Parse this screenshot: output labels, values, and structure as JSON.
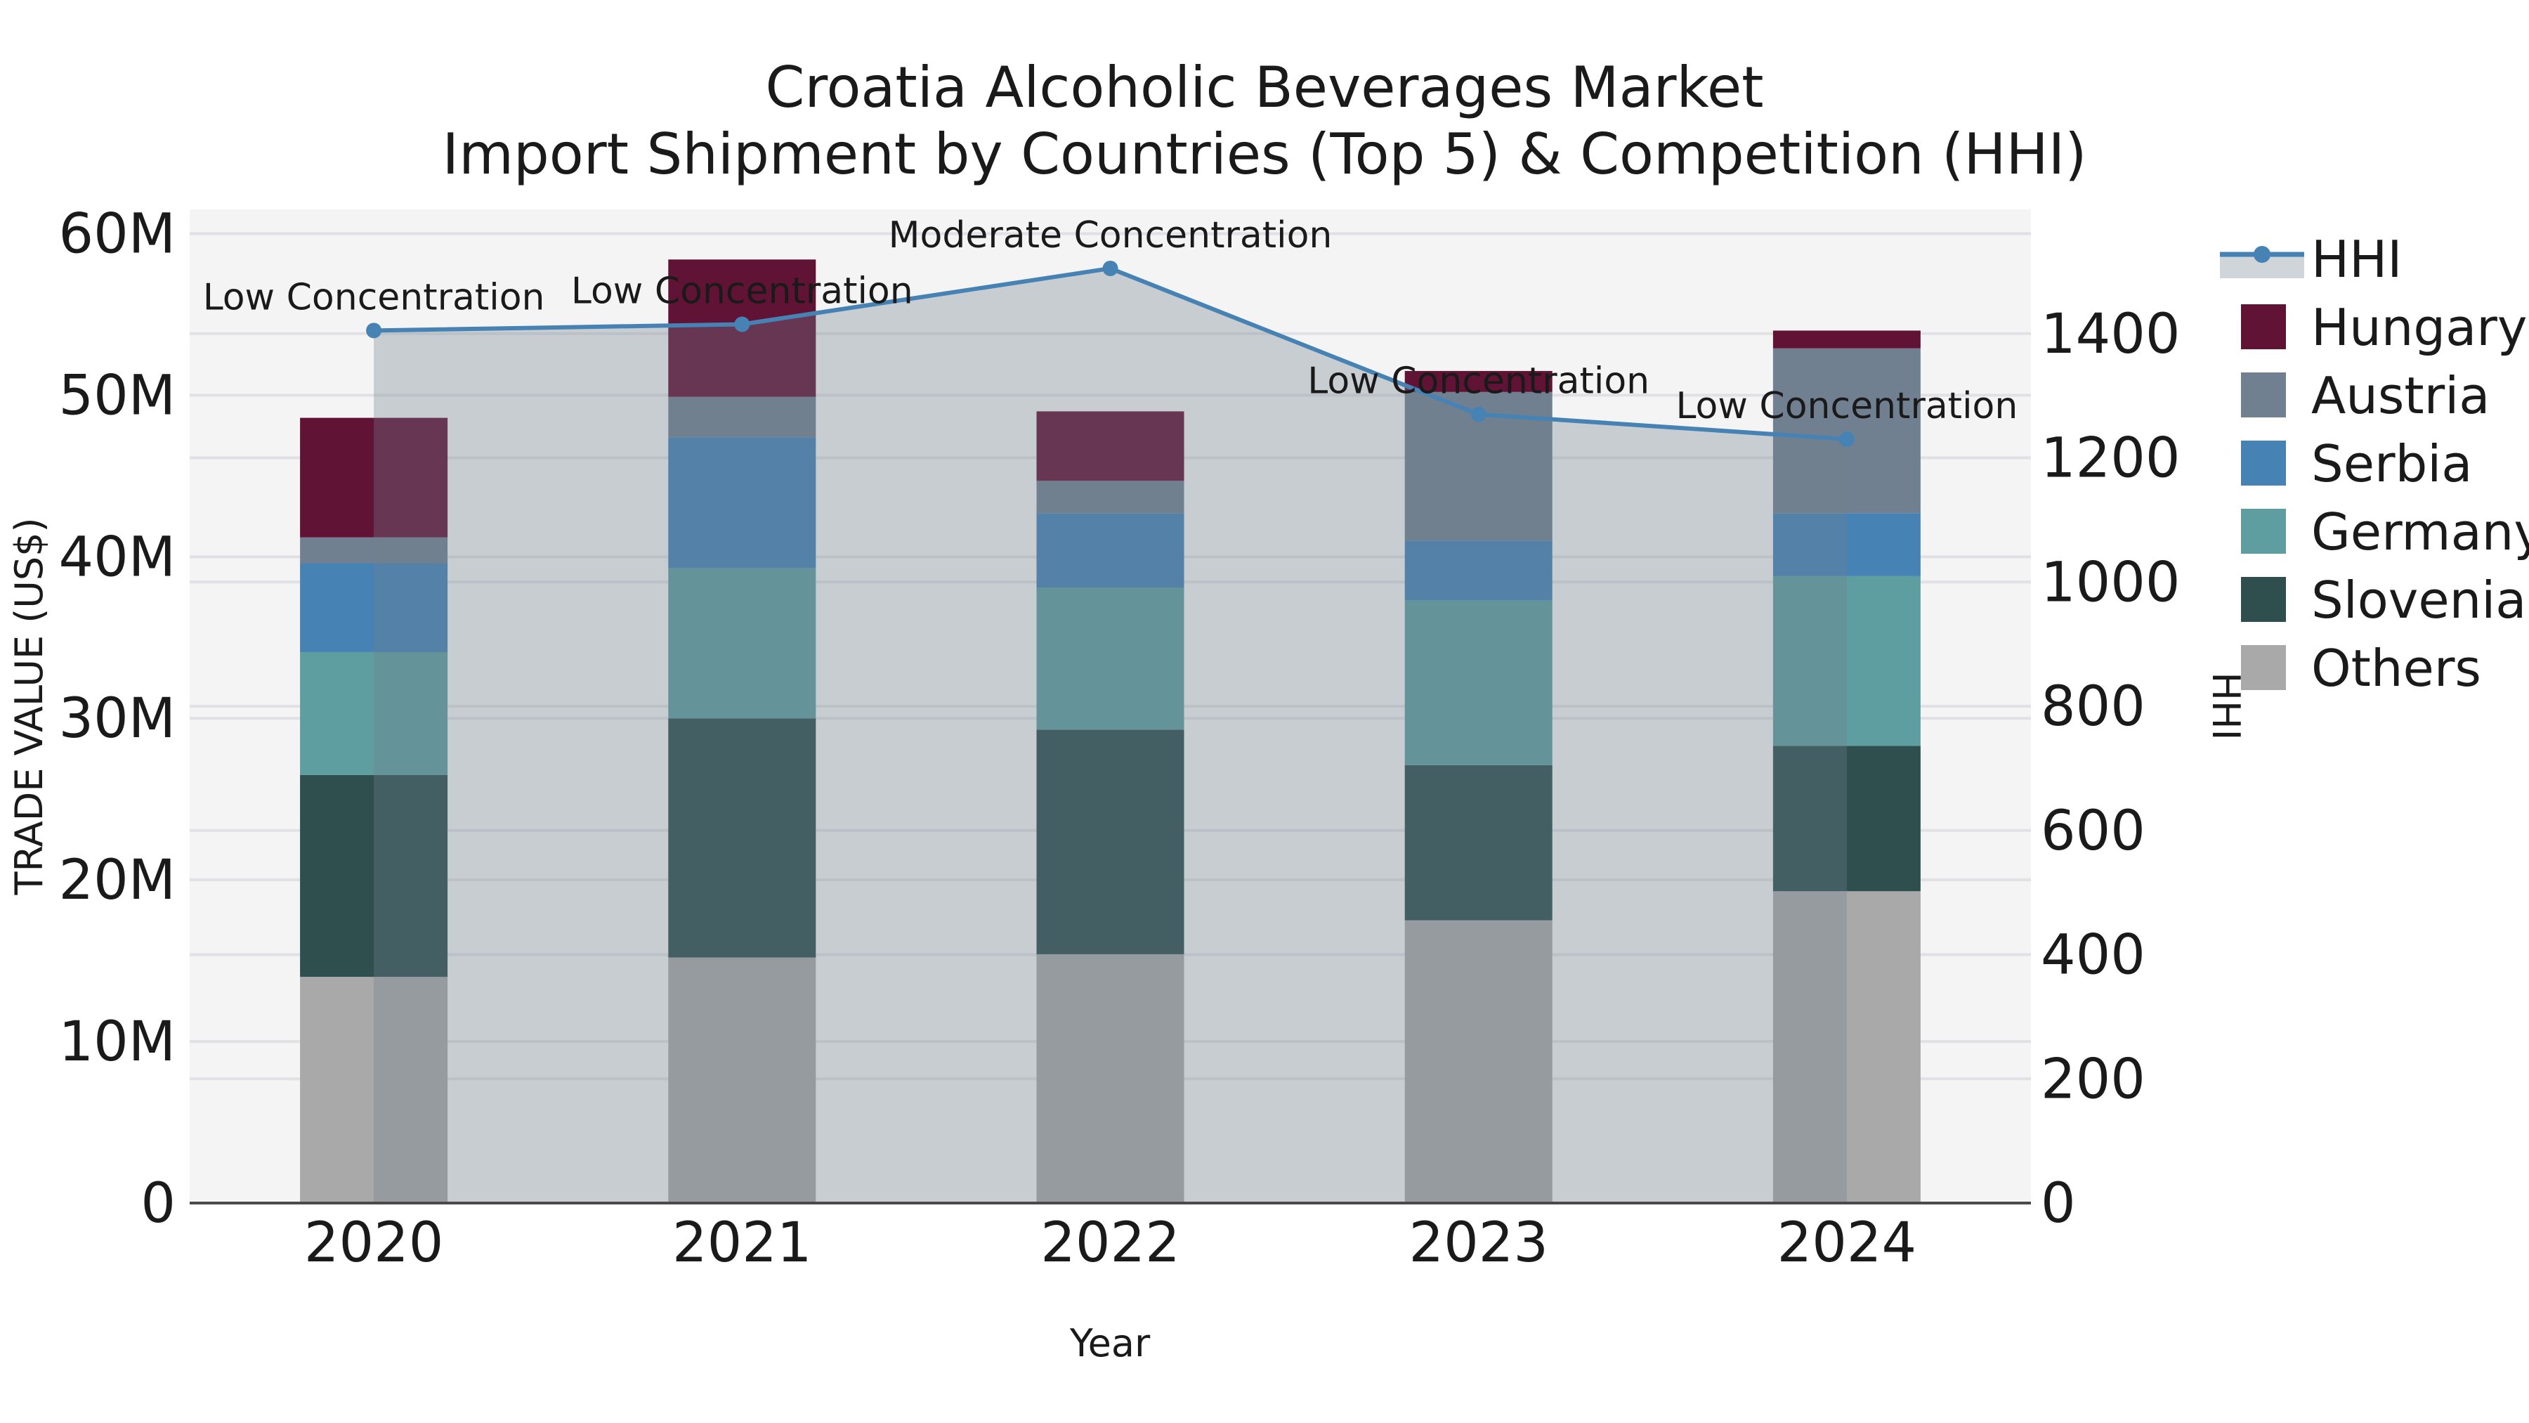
{
  "title": {
    "line1": "Croatia Alcoholic Beverages Market",
    "line2": "Import Shipment by Countries (Top 5) & Competition (HHI)"
  },
  "axes": {
    "x": {
      "label": "Year",
      "categories": [
        "2020",
        "2021",
        "2022",
        "2023",
        "2024"
      ]
    },
    "y_left": {
      "label": "TRADE VALUE (US$)",
      "tick_labels": [
        "0",
        "10M",
        "20M",
        "30M",
        "40M",
        "50M",
        "60M"
      ],
      "tick_values": [
        0,
        10,
        20,
        30,
        40,
        50,
        60
      ],
      "max": 61.5,
      "unit": "millions US$"
    },
    "y_right": {
      "label": "HHI",
      "tick_labels": [
        "0",
        "200",
        "400",
        "600",
        "800",
        "1000",
        "1200",
        "1400"
      ],
      "tick_values": [
        0,
        200,
        400,
        600,
        800,
        1000,
        1200,
        1400
      ],
      "max": 1600
    }
  },
  "legend": {
    "items": [
      "HHI",
      "Hungary",
      "Austria",
      "Serbia",
      "Germany",
      "Slovenia",
      "Others"
    ]
  },
  "colors": {
    "hhi_line": "#4682b4",
    "hhi_fill": "#708090",
    "hhi_fill_opacity": 0.33,
    "hungary": "#611336",
    "austria": "#708090",
    "serbia": "#4682b4",
    "germany": "#5f9ea0",
    "slovenia": "#2f4f4f",
    "others": "#a9a9a9",
    "plot_bg": "#f4f4f4",
    "grid": "#e1e1e5",
    "axis_line": "#4a4a4a",
    "text": "#1a1a1a"
  },
  "chart_data": {
    "type": "bar+line",
    "categories": [
      "2020",
      "2021",
      "2022",
      "2023",
      "2024"
    ],
    "bar_unit": "million US$",
    "stack_order_bottom_up": [
      "Others",
      "Slovenia",
      "Germany",
      "Serbia",
      "Austria",
      "Hungary"
    ],
    "series": [
      {
        "name": "Others",
        "color_key": "others",
        "values": [
          14.0,
          15.2,
          15.4,
          17.5,
          19.3
        ]
      },
      {
        "name": "Slovenia",
        "color_key": "slovenia",
        "values": [
          12.5,
          14.8,
          13.9,
          9.6,
          9.0
        ]
      },
      {
        "name": "Germany",
        "color_key": "germany",
        "values": [
          7.6,
          9.3,
          8.8,
          10.2,
          10.5
        ]
      },
      {
        "name": "Serbia",
        "color_key": "serbia",
        "values": [
          5.5,
          8.1,
          4.6,
          3.7,
          3.9
        ]
      },
      {
        "name": "Austria",
        "color_key": "austria",
        "values": [
          1.6,
          2.5,
          2.0,
          9.2,
          10.2
        ]
      },
      {
        "name": "Hungary",
        "color_key": "hungary",
        "values": [
          7.4,
          8.5,
          4.3,
          1.3,
          1.1
        ]
      }
    ],
    "bar_totals": [
      48.6,
      58.4,
      49.0,
      51.5,
      54.0
    ],
    "hhi": {
      "name": "HHI",
      "values": [
        1405,
        1415,
        1505,
        1270,
        1230
      ],
      "axis": "right"
    },
    "annotations": [
      {
        "category": "2020",
        "text": "Low Concentration"
      },
      {
        "category": "2021",
        "text": "Low Concentration"
      },
      {
        "category": "2022",
        "text": "Moderate Concentration"
      },
      {
        "category": "2023",
        "text": "Low Concentration"
      },
      {
        "category": "2024",
        "text": "Low Concentration"
      }
    ],
    "layout_hints": {
      "grid": true,
      "legend_position": "right",
      "area_fill_under_line": true,
      "ylim_left": [
        0,
        61.5
      ],
      "ylim_right": [
        0,
        1600
      ]
    }
  }
}
